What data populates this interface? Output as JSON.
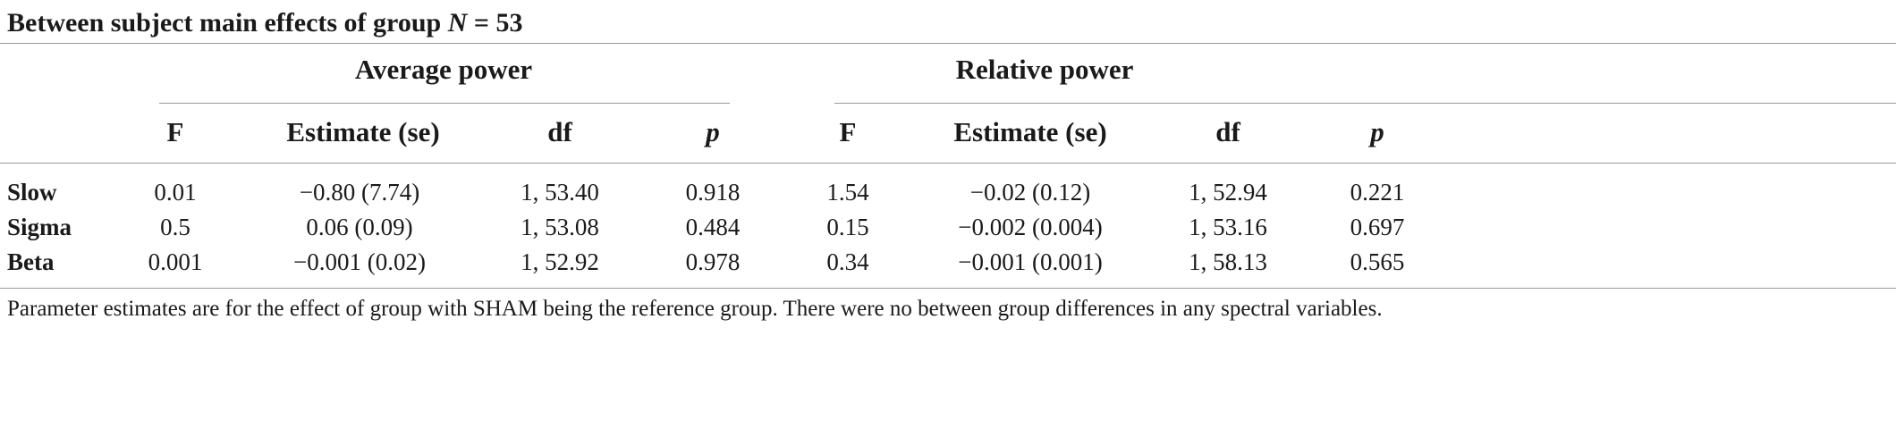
{
  "title": {
    "prefix": "Between subject main effects of group ",
    "n_symbol": "N",
    "suffix": " = 53"
  },
  "groups": {
    "average": "Average power",
    "relative": "Relative power"
  },
  "columns": {
    "f": "F",
    "estimate": "Estimate (se)",
    "df": "df",
    "p": "p"
  },
  "rows": [
    {
      "label": "Slow",
      "average": {
        "f": "0.01",
        "estimate": "−0.80 (7.74)",
        "df": "1, 53.40",
        "p": "0.918"
      },
      "relative": {
        "f": "1.54",
        "estimate": "−0.02 (0.12)",
        "df": "1, 52.94",
        "p": "0.221"
      }
    },
    {
      "label": "Sigma",
      "average": {
        "f": "0.5",
        "estimate": "0.06 (0.09)",
        "df": "1, 53.08",
        "p": "0.484"
      },
      "relative": {
        "f": "0.15",
        "estimate": "−0.002 (0.004)",
        "df": "1, 53.16",
        "p": "0.697"
      }
    },
    {
      "label": "Beta",
      "average": {
        "f": "0.001",
        "estimate": "−0.001 (0.02)",
        "df": "1, 52.92",
        "p": "0.978"
      },
      "relative": {
        "f": "0.34",
        "estimate": "−0.001 (0.001)",
        "df": "1, 58.13",
        "p": "0.565"
      }
    }
  ],
  "footnote": "Parameter estimates are for the effect of group with SHAM being the reference group. There were no between group differences in any spectral variables."
}
